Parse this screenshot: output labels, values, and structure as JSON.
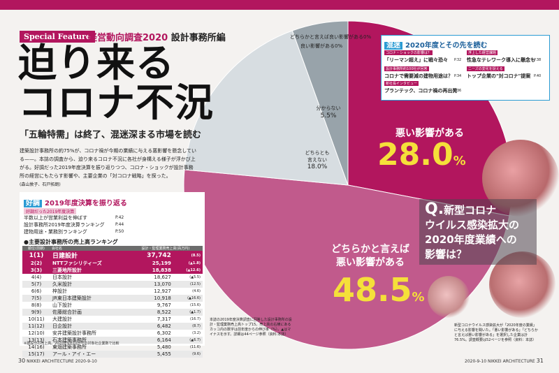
{
  "header": {
    "special_label": "Special Feature",
    "survey_title": "経営動向調査2020",
    "survey_sub": "設計事務所編",
    "headline_line1": "迫り来る",
    "headline_line2": "コロナ不況",
    "deck": "「五輪特需」は終了、混迷深まる市場を読む",
    "lead": "建築設計事務所の約75%が、コロナ禍が今期の業績に与える悪影響を懸念している——。本誌の調査から、迫り来るコロナ不況に各社が身構える様子が浮かび上がる。好調だった2019年度決算を振り返りつつ、コロナ・ショックが設計事務所の経営にもたらす影響や、主要企業の「対コロナ戦略」を探った。",
    "byline": "(森山敦子、石戸拓朗)"
  },
  "review_box": {
    "tag": "好調",
    "title": "2019年度決算を振り返る",
    "category": "好調だった2019年度決算",
    "links": [
      {
        "label": "半数以上が営業利益を伸ばす",
        "page": "P.42"
      },
      {
        "label": "設計事務所2019年度決算ランキング",
        "page": "P.44"
      },
      {
        "label": "建物用途・業務別ランキング",
        "page": "P.50"
      }
    ],
    "ranking_title": "●主要設計事務所の売上高ランキング",
    "columns": [
      "順位(前期)",
      "会社名",
      "設計・監理業務売上高(百万円)",
      ""
    ],
    "rows": [
      {
        "rank": "1(1)",
        "name": "日建設計",
        "sales": "37,742",
        "change": "(8.5)"
      },
      {
        "rank": "2(2)",
        "name": "NTTファシリティーズ",
        "sales": "25,199",
        "change": "(▲1.8)"
      },
      {
        "rank": "3(3)",
        "name": "三菱地所設計",
        "sales": "18,838",
        "change": "(▲12.6)"
      },
      {
        "rank": "4(4)",
        "name": "日本設計",
        "sales": "18,627",
        "change": "(▲5.5)"
      },
      {
        "rank": "5(7)",
        "name": "久米設計",
        "sales": "13,070",
        "change": "(12.5)"
      },
      {
        "rank": "6(6)",
        "name": "梓設計",
        "sales": "12,927",
        "change": "(4.6)"
      },
      {
        "rank": "7(5)",
        "name": "JR東日本建築設計",
        "sales": "10,918",
        "change": "(▲16.6)"
      },
      {
        "rank": "8(8)",
        "name": "山下設計",
        "sales": "9,767",
        "change": "(15.6)"
      },
      {
        "rank": "9(9)",
        "name": "佐藤総合計画",
        "sales": "8,522",
        "change": "(▲1.7)"
      },
      {
        "rank": "10(11)",
        "name": "大建設計",
        "sales": "7,317",
        "change": "(16.7)"
      },
      {
        "rank": "11(12)",
        "name": "日企設計",
        "sales": "6,482",
        "change": "(8.7)"
      },
      {
        "rank": "12(10)",
        "name": "安井建築設計事務所",
        "sales": "6,302",
        "change": "(3.2)"
      },
      {
        "rank": "13(13)",
        "name": "石本建築事務所",
        "sales": "6,164",
        "change": "(▲6.7)"
      },
      {
        "rank": "14(16)",
        "name": "東畑建築事務所",
        "sales": "5,480",
        "change": "(11.6)"
      },
      {
        "rank": "15(17)",
        "name": "アール・アイ・エー",
        "sales": "5,455",
        "(change)": "",
        "change": "(9.6)"
      }
    ],
    "ranking_note": "※建設分の売上高。2020年9月10日号の対象社企業数で比較"
  },
  "chart_data": {
    "type": "pie",
    "categories": [
      "悪い影響がある",
      "どちらかと言えば悪い影響がある",
      "どちらとも言えない",
      "分からない",
      "良い影響がある",
      "どちらかと言えば良い影響がある"
    ],
    "values": [
      28.0,
      48.5,
      18.0,
      5.5,
      0,
      0
    ],
    "labels": {
      "bad": "悪い影響がある",
      "bad_value": "28.0",
      "somewhat_bad_1": "どちらかと言えば",
      "somewhat_bad_2": "悪い影響がある",
      "somewhat_bad_value": "48.5",
      "neutral_1": "どちらとも",
      "neutral_2": "言えない",
      "neutral_value": "18.0%",
      "unknown": "分からない",
      "unknown_value": "5.5%",
      "good": "良い影響がある0%",
      "somewhat_good": "どちらかと言えば良い影響がある0%",
      "percent": "%"
    },
    "colors": {
      "bad": "#b2165e",
      "somewhat_bad": "#c15a8c",
      "neutral": "#d7dde1",
      "unknown": "#98a3aa",
      "value_text": "#f5e03a"
    }
  },
  "question": {
    "q": "Q.",
    "text1": "新型コロナ",
    "text2": "ウイルス感染拡大の",
    "text3": "2020年度業績への",
    "text4": "影響は？"
  },
  "future_panel": {
    "tag": "混迷",
    "title": "2020年度とその先を読む",
    "items": [
      {
        "cat": "コロナ・ショックの影響は？",
        "label": "「リーマン超え」に戦々恐々",
        "page": "P.32"
      },
      {
        "cat": "設計事務所約100社が回答",
        "label": "コロナで需要減の建物用途は？",
        "page": "P.34"
      },
      {
        "cat": "新社長インタビュー",
        "label": "プランテック、コロナ禍の再出発",
        "page": "P.36"
      },
      {
        "cat": "浮上した経営課題",
        "label": "性急なテレワーク導入に懸念も",
        "page": "P.38"
      },
      {
        "cat": "ニーズの変化を捉える",
        "label": "トップ企業の\"対コロナ\"提案",
        "page": "P.40"
      }
    ]
  },
  "notes": {
    "mid_caption": "本誌の2019年度決算調査に回答した設計事務所の設計・監理業務売上高トップ15。売上高の右横にあるカッコ内の数字は前年度からの伸び率（%）。▲はマイナスを示す。詳細は44ページ参照（資料:本誌）",
    "right_caption": "新型コロナウイルス感染拡大が「2020年度の業績」に与える影響を聞いた。「悪い影響がある」「どちらかと言えば悪い影響がある」を選択した企業は計76.5%。調査概要は52ページを参照（資料：本誌）"
  },
  "footer": {
    "left_page": "30",
    "left_mag": "NIKKEI ARCHITECTURE",
    "left_date": "2020-9-10",
    "right_date": "2020-9-10",
    "right_mag": "NIKKEI ARCHITECTURE",
    "right_page": "31"
  }
}
